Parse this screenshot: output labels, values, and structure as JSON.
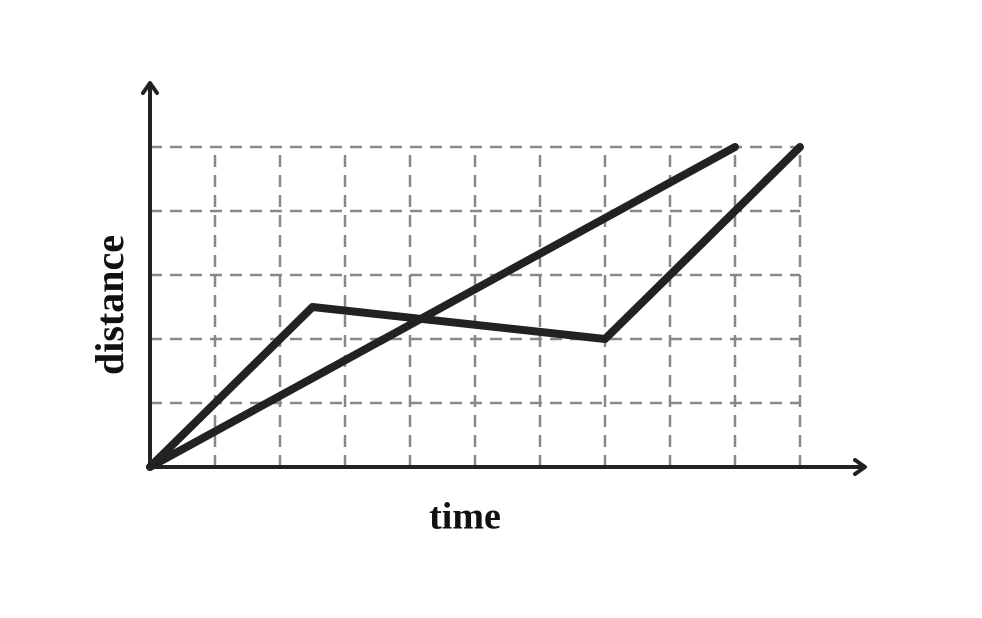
{
  "chart_data": {
    "type": "line",
    "x_label": "time",
    "y_label": "distance",
    "series": [
      {
        "color": "#222222",
        "x": [
          0,
          9
        ],
        "values": [
          0,
          5
        ]
      },
      {
        "color": "#222222",
        "x": [
          0,
          2.5,
          7,
          10
        ],
        "values": [
          0,
          2.5,
          2,
          5
        ]
      }
    ],
    "xlim": [
      0,
      11
    ],
    "ylim": [
      0,
      6
    ],
    "xticks": [
      1,
      2,
      3,
      4,
      5,
      6,
      7,
      8,
      9,
      10
    ],
    "yticks": [
      1,
      2,
      3,
      4,
      5
    ],
    "grid": true
  }
}
